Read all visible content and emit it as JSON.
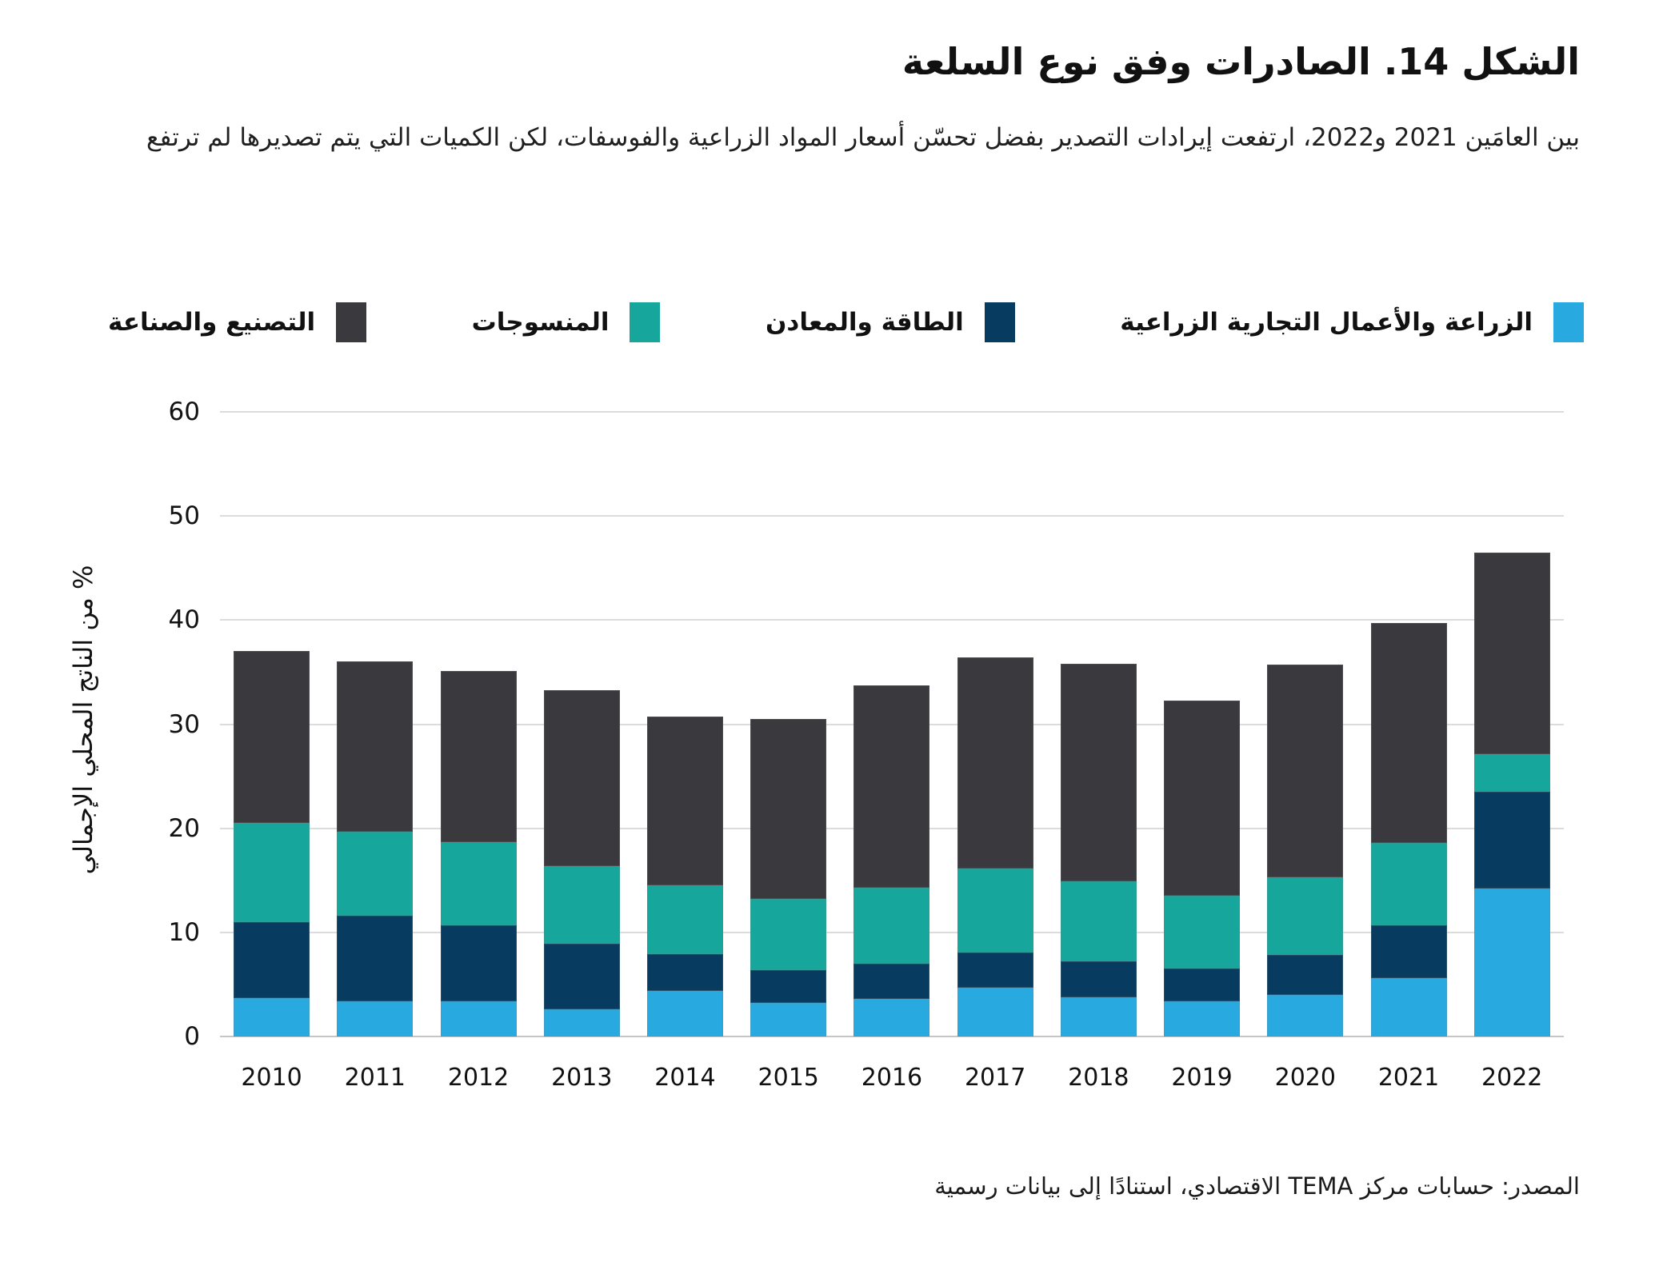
{
  "figure": {
    "title": "الشكل 14. الصادرات وفق نوع السلعة",
    "subtitle": "بين العامَين 2021 و2022، ارتفعت إيرادات التصدير بفضل تحسّن أسعار المواد الزراعية والفوسفات، لكن الكميات التي يتم تصديرها لم ترتفع",
    "source": "المصدر: حسابات مركز TEMA الاقتصادي، استنادًا إلى بيانات رسمية"
  },
  "chart_data": {
    "type": "bar",
    "stacked": true,
    "title": "الشكل 14. الصادرات وفق نوع السلعة",
    "ylabel": "% من الناتج المحلي الإجمالي",
    "xlabel": "",
    "ylim": [
      0,
      60
    ],
    "ytick_step": 10,
    "grid": true,
    "legend_position": "top",
    "categories": [
      "2010",
      "2011",
      "2012",
      "2013",
      "2014",
      "2015",
      "2016",
      "2017",
      "2018",
      "2019",
      "2020",
      "2021",
      "2022"
    ],
    "series": [
      {
        "name": "الزراعة والأعمال التجارية الزراعية",
        "color": "#28AAE1",
        "values": [
          3.7,
          3.4,
          3.4,
          2.6,
          4.4,
          3.2,
          3.6,
          4.7,
          3.8,
          3.4,
          4.0,
          5.6,
          14.2
        ]
      },
      {
        "name": "الطاقة والمعادن",
        "color": "#073B5F",
        "values": [
          7.3,
          8.2,
          7.3,
          6.3,
          3.5,
          3.2,
          3.4,
          3.4,
          3.4,
          3.1,
          3.8,
          5.1,
          9.3
        ]
      },
      {
        "name": "المنسوجات",
        "color": "#16A69B",
        "values": [
          9.5,
          8.1,
          8.0,
          7.5,
          6.6,
          6.8,
          7.3,
          8.0,
          7.7,
          7.0,
          7.5,
          7.9,
          3.6
        ]
      },
      {
        "name": "التصنيع والصناعة",
        "color": "#3A3A3E",
        "values": [
          16.5,
          16.3,
          16.4,
          16.9,
          16.2,
          17.3,
          19.4,
          20.3,
          20.9,
          18.8,
          20.4,
          21.1,
          19.4
        ]
      }
    ],
    "totals": [
      37.0,
      36.0,
      35.1,
      33.3,
      30.7,
      30.5,
      33.7,
      36.4,
      35.8,
      32.3,
      35.7,
      39.7,
      46.5
    ]
  }
}
